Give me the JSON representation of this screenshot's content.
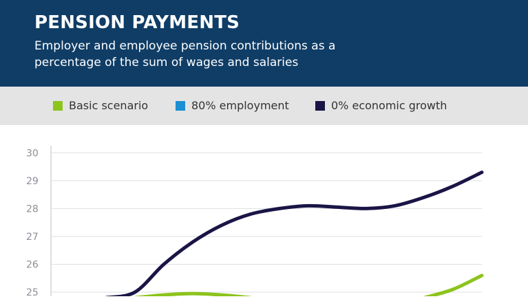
{
  "header": {
    "title": "PENSION PAYMENTS",
    "subtitle": "Employer and employee pension contributions as a percentage of the sum of wages and salaries"
  },
  "colors": {
    "header_bg": "#0f3d66",
    "legend_bg": "#e4e4e4",
    "basic": "#8cc41c",
    "employment": "#1b8fd1",
    "zero_growth": "#1a1546"
  },
  "legend": [
    {
      "label": "Basic scenario",
      "color": "#8cc41c"
    },
    {
      "label": "80% employment",
      "color": "#1b8fd1"
    },
    {
      "label": "0% economic growth",
      "color": "#1a1546"
    }
  ],
  "chart_data": {
    "type": "line",
    "title": "PENSION PAYMENTS",
    "subtitle": "Employer and employee pension contributions as a percentage of the sum of wages and salaries",
    "ylim": [
      25,
      30
    ],
    "yticks": [
      25,
      26,
      27,
      28,
      29,
      30
    ],
    "x": [
      0,
      1,
      2,
      3,
      4,
      5,
      6,
      7,
      8,
      9,
      10,
      11,
      12,
      13
    ],
    "series": [
      {
        "name": "0% economic growth",
        "color": "#1a1546",
        "values": [
          24.8,
          25.0,
          26.0,
          26.8,
          27.4,
          27.8,
          28.0,
          28.1,
          28.05,
          28.0,
          28.1,
          28.4,
          28.8,
          29.3
        ]
      },
      {
        "name": "Basic scenario",
        "color": "#8cc41c",
        "values": [
          null,
          24.8,
          24.9,
          24.95,
          24.9,
          24.8,
          null,
          null,
          null,
          null,
          null,
          24.8,
          25.1,
          25.6
        ]
      }
    ],
    "grid": true
  }
}
